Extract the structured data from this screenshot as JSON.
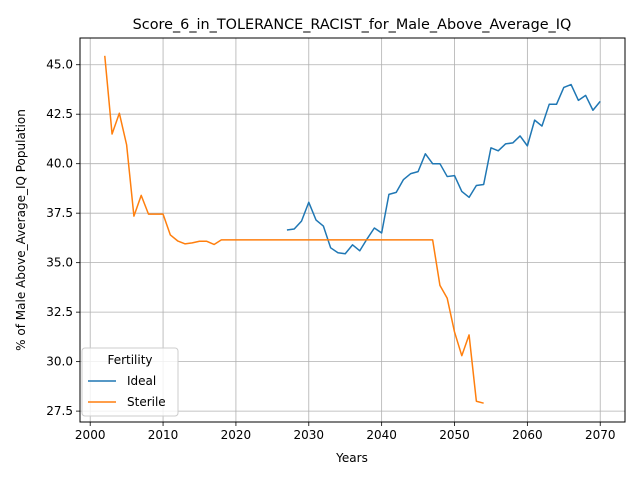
{
  "chart_data": {
    "type": "line",
    "title": "Score_6_in_TOLERANCE_RACIST_for_Male_Above_Average_IQ",
    "xlabel": "Years",
    "ylabel": "% of Male Above_Average_IQ Population",
    "xlim": [
      1998.6,
      2073.4
    ],
    "ylim": [
      26.95,
      46.35
    ],
    "xticks": [
      2000,
      2010,
      2020,
      2030,
      2040,
      2050,
      2060,
      2070
    ],
    "yticks": [
      27.5,
      30.0,
      32.5,
      35.0,
      37.5,
      40.0,
      42.5,
      45.0
    ],
    "xtick_labels": [
      "2000",
      "2010",
      "2020",
      "2030",
      "2040",
      "2050",
      "2060",
      "2070"
    ],
    "ytick_labels": [
      "27.5",
      "30.0",
      "32.5",
      "35.0",
      "37.5",
      "40.0",
      "42.5",
      "45.0"
    ],
    "grid": true,
    "legend": {
      "title": "Fertility",
      "placement": "lower-left"
    },
    "series": [
      {
        "name": "Ideal",
        "color": "#1f77b4",
        "x": [
          2027,
          2028,
          2029,
          2030,
          2031,
          2032,
          2033,
          2034,
          2035,
          2036,
          2037,
          2038,
          2039,
          2040,
          2041,
          2042,
          2043,
          2044,
          2045,
          2046,
          2047,
          2048,
          2049,
          2050,
          2051,
          2052,
          2053,
          2054,
          2055,
          2056,
          2057,
          2058,
          2059,
          2060,
          2061,
          2062,
          2063,
          2064,
          2065,
          2066,
          2067,
          2068,
          2069,
          2070
        ],
        "y": [
          36.65,
          36.7,
          37.1,
          38.05,
          37.15,
          36.85,
          35.75,
          35.5,
          35.45,
          35.9,
          35.6,
          36.2,
          36.75,
          36.5,
          38.45,
          38.55,
          39.2,
          39.5,
          39.6,
          40.5,
          40.0,
          40.0,
          39.35,
          39.4,
          38.6,
          38.3,
          38.9,
          38.95,
          40.8,
          40.65,
          41.0,
          41.05,
          41.4,
          40.9,
          42.2,
          41.9,
          43.0,
          43.0,
          43.85,
          44.0,
          43.2,
          43.45,
          42.7,
          43.15
        ]
      },
      {
        "name": "Sterile",
        "color": "#ff7f0e",
        "x": [
          2002,
          2003,
          2004,
          2005,
          2006,
          2007,
          2008,
          2009,
          2010,
          2011,
          2012,
          2013,
          2014,
          2015,
          2016,
          2017,
          2018,
          2019,
          2020,
          2021,
          2022,
          2023,
          2024,
          2025,
          2026,
          2027,
          2028,
          2029,
          2030,
          2031,
          2032,
          2033,
          2034,
          2035,
          2036,
          2037,
          2038,
          2039,
          2040,
          2041,
          2042,
          2043,
          2044,
          2045,
          2046,
          2047,
          2048,
          2049,
          2050,
          2051,
          2052,
          2053,
          2054
        ],
        "y": [
          45.45,
          41.5,
          42.55,
          40.95,
          37.35,
          38.4,
          37.45,
          37.45,
          37.45,
          36.4,
          36.1,
          35.95,
          36.0,
          36.08,
          36.08,
          35.92,
          36.15,
          36.15,
          36.15,
          36.15,
          36.15,
          36.15,
          36.15,
          36.15,
          36.15,
          36.15,
          36.15,
          36.15,
          36.15,
          36.15,
          36.15,
          36.15,
          36.15,
          36.15,
          36.15,
          36.15,
          36.15,
          36.15,
          36.15,
          36.15,
          36.15,
          36.15,
          36.15,
          36.15,
          36.15,
          36.15,
          33.85,
          33.2,
          31.5,
          30.3,
          31.35,
          28.0,
          27.9
        ]
      }
    ]
  }
}
